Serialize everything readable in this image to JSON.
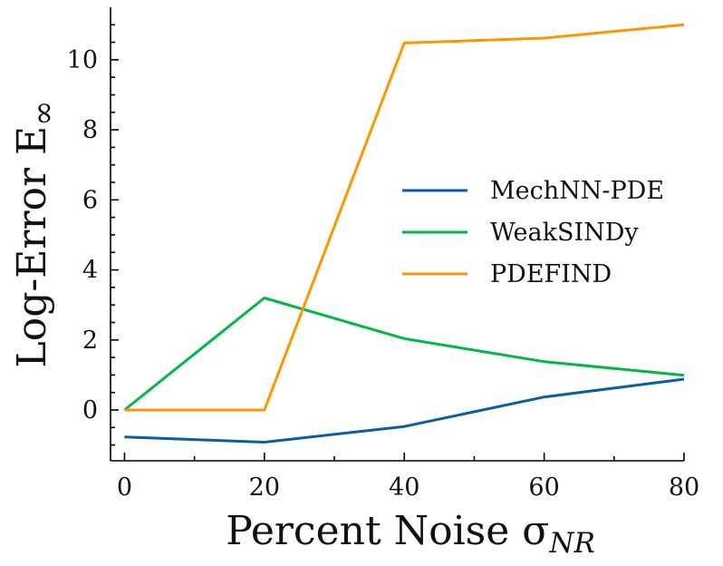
{
  "chart_data": {
    "type": "line",
    "title": "",
    "xlabel": "Percent Noise σ",
    "xlabel_sub": "NR",
    "ylabel": "Log-Error E",
    "ylabel_sub": "∞",
    "x": [
      0,
      20,
      40,
      60,
      80
    ],
    "xlim": [
      -2,
      80
    ],
    "ylim": [
      -1.45,
      11.5
    ],
    "xticks": [
      "0",
      "20",
      "40",
      "60",
      "80"
    ],
    "yticks": [
      "0",
      "2",
      "4",
      "6",
      "8",
      "10"
    ],
    "legend_position": "center-right",
    "series": [
      {
        "name": "MechNN-PDE",
        "color": "#0c5da5",
        "values": [
          -0.77,
          -0.92,
          -0.47,
          0.37,
          0.88
        ]
      },
      {
        "name": "WeakSINDy",
        "color": "#00b945",
        "values": [
          0.0,
          3.2,
          2.04,
          1.38,
          0.99
        ]
      },
      {
        "name": "PDEFIND",
        "color": "#ff9500",
        "values": [
          0.0,
          0.0,
          10.48,
          10.62,
          11.0
        ]
      }
    ]
  }
}
